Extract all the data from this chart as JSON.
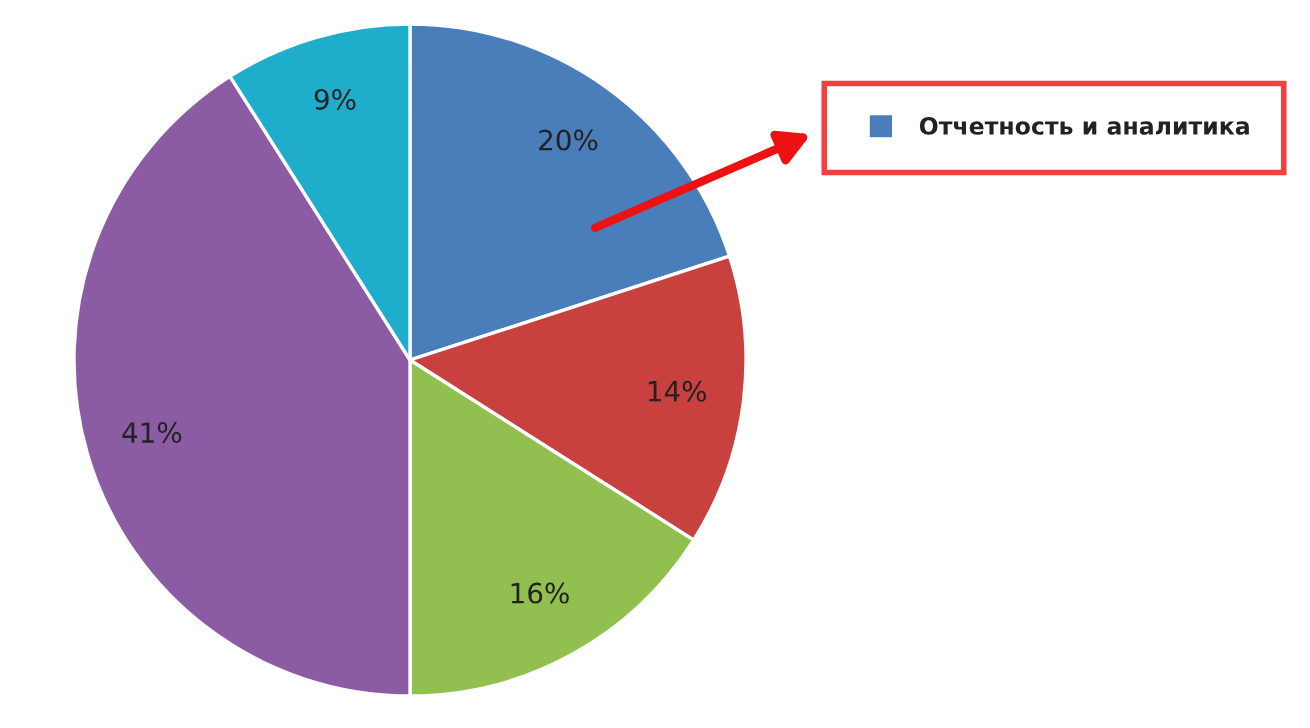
{
  "chart_data": {
    "type": "pie",
    "categories": [
      "Отчетность и аналитика",
      null,
      null,
      null,
      null
    ],
    "values": [
      20,
      14,
      16,
      41,
      9
    ],
    "value_labels": [
      "20%",
      "14%",
      "16%",
      "41%",
      "9%"
    ],
    "colors": [
      "#4a7ebb",
      "#c8413f",
      "#92c050",
      "#8b5ca4",
      "#1eaecb"
    ],
    "legend": "right"
  }
}
